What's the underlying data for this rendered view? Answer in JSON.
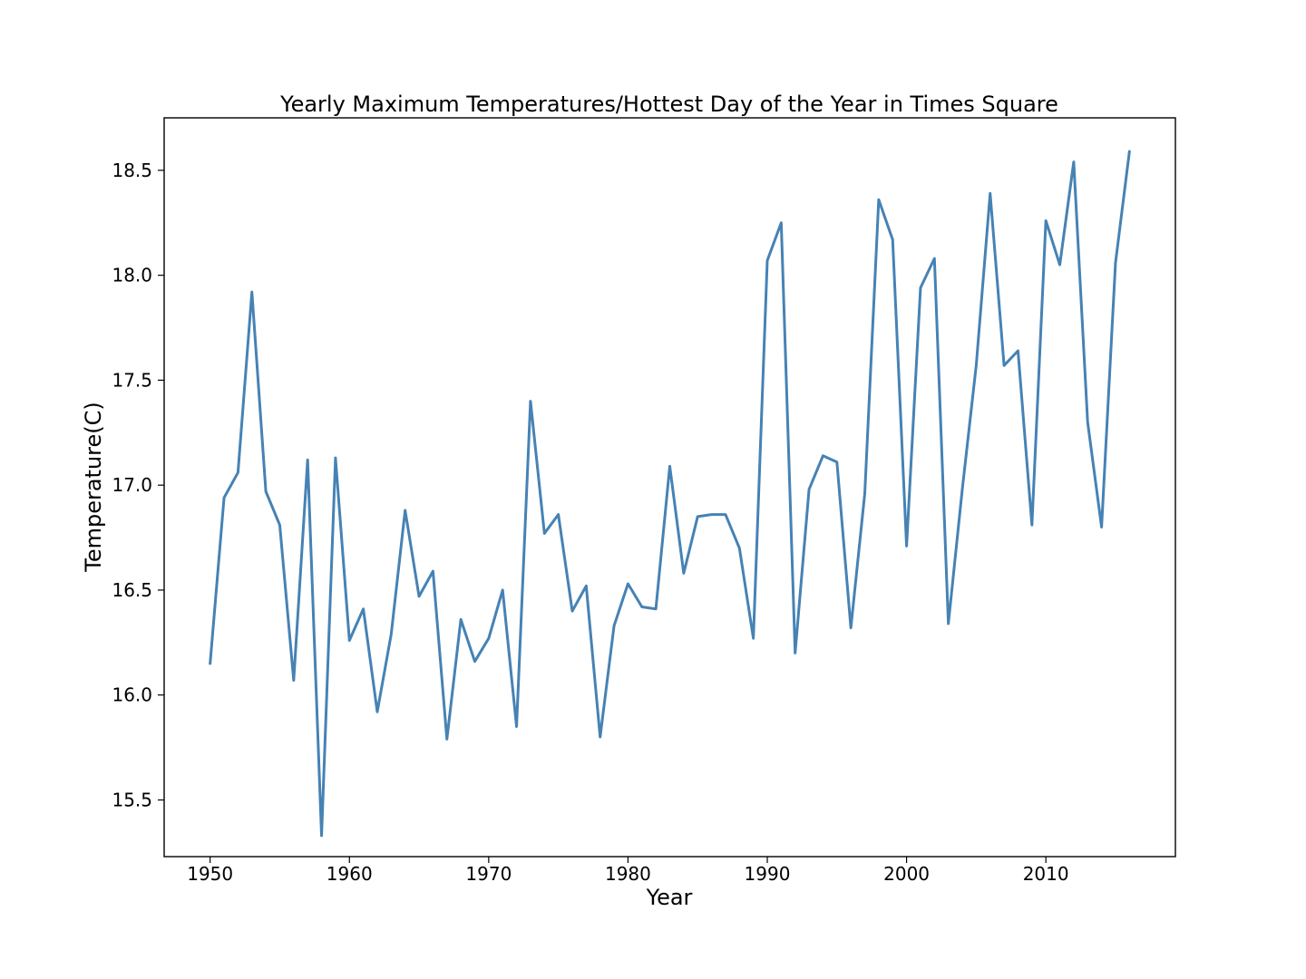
{
  "chart_data": {
    "type": "line",
    "title": "Yearly Maximum Temperatures/Hottest Day of the Year in Times Square",
    "xlabel": "Year",
    "ylabel": "Temperature(C)",
    "xlim": [
      1946.7,
      2019.3
    ],
    "ylim": [
      15.23,
      18.75
    ],
    "xticks": [
      1950,
      1960,
      1970,
      1980,
      1990,
      2000,
      2010
    ],
    "xtick_labels": [
      "1950",
      "1960",
      "1970",
      "1980",
      "1990",
      "2000",
      "2010"
    ],
    "yticks": [
      15.5,
      16.0,
      16.5,
      17.0,
      17.5,
      18.0,
      18.5
    ],
    "ytick_labels": [
      "15.5",
      "16.0",
      "16.5",
      "17.0",
      "17.5",
      "18.0",
      "18.5"
    ],
    "grid": false,
    "line_color": "#4682b4",
    "series": [
      {
        "x": [
          1950,
          1951,
          1952,
          1953,
          1954,
          1955,
          1956,
          1957,
          1958,
          1959,
          1960,
          1961,
          1962,
          1963,
          1964,
          1965,
          1966,
          1967,
          1968,
          1969,
          1970,
          1971,
          1972,
          1973,
          1974,
          1975,
          1976,
          1977,
          1978,
          1979,
          1980,
          1981,
          1982,
          1983,
          1984,
          1985,
          1986,
          1987,
          1988,
          1989,
          1990,
          1991,
          1992,
          1993,
          1994,
          1995,
          1996,
          1997,
          1998,
          1999,
          2000,
          2001,
          2002,
          2003,
          2004,
          2005,
          2006,
          2007,
          2008,
          2009,
          2010,
          2011,
          2012,
          2013,
          2014,
          2015,
          2016
        ],
        "values": [
          16.15,
          16.94,
          17.06,
          17.92,
          16.97,
          16.81,
          16.07,
          17.12,
          15.33,
          17.13,
          16.26,
          16.41,
          15.92,
          16.29,
          16.88,
          16.47,
          16.59,
          15.79,
          16.36,
          16.16,
          16.27,
          16.5,
          15.85,
          17.4,
          16.77,
          16.86,
          16.4,
          16.52,
          15.8,
          16.33,
          16.53,
          16.42,
          16.41,
          17.09,
          16.58,
          16.85,
          16.86,
          16.86,
          16.7,
          16.27,
          18.07,
          18.25,
          16.2,
          16.98,
          17.14,
          17.11,
          16.32,
          16.96,
          18.36,
          18.17,
          16.71,
          17.94,
          18.08,
          16.34,
          16.98,
          17.57,
          18.39,
          17.57,
          17.64,
          16.81,
          18.26,
          18.05,
          18.54,
          17.3,
          16.8,
          18.06,
          18.59
        ]
      }
    ]
  }
}
